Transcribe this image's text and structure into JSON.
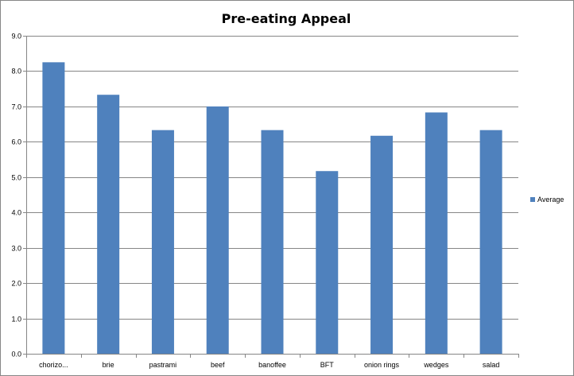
{
  "chart_data": {
    "type": "bar",
    "title": "Pre-eating Appeal",
    "xlabel": "",
    "ylabel": "",
    "categories": [
      "chorizo...",
      "brie",
      "pastrami",
      "beef",
      "banoffee",
      "BFT",
      "onion rings",
      "wedges",
      "salad"
    ],
    "series": [
      {
        "name": "Average",
        "values": [
          8.25,
          7.33,
          6.33,
          7.0,
          6.33,
          5.17,
          6.17,
          6.83,
          6.33
        ],
        "color": "#4F81BD"
      }
    ],
    "ylim": [
      0,
      9
    ],
    "ytick_step": 1,
    "ytick_labels": [
      "0.0",
      "1.0",
      "2.0",
      "3.0",
      "4.0",
      "5.0",
      "6.0",
      "7.0",
      "8.0",
      "9.0"
    ],
    "grid": true,
    "legend_position": "right",
    "colors": {
      "gridline": "#868686",
      "axis": "#868686"
    }
  }
}
